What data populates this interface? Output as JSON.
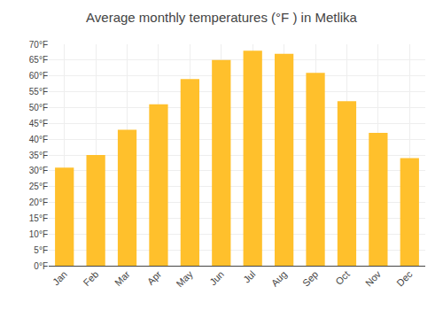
{
  "chart_data": {
    "type": "bar",
    "title": "Average monthly temperatures (°F ) in Metlika",
    "categories": [
      "Jan",
      "Feb",
      "Mar",
      "Apr",
      "May",
      "Jun",
      "Jul",
      "Aug",
      "Sep",
      "Oct",
      "Nov",
      "Dec"
    ],
    "values": [
      31,
      35,
      43,
      51,
      59,
      65,
      68,
      67,
      61,
      52,
      42,
      34
    ],
    "color": "#FFC02C",
    "ylim": [
      0,
      70
    ],
    "yticks": [
      {
        "value": 0,
        "label": "0°F"
      },
      {
        "value": 5,
        "label": "5°F"
      },
      {
        "value": 10,
        "label": "10°F"
      },
      {
        "value": 15,
        "label": "15°F"
      },
      {
        "value": 20,
        "label": "20°F"
      },
      {
        "value": 25,
        "label": "25°F"
      },
      {
        "value": 30,
        "label": "30°F"
      },
      {
        "value": 35,
        "label": "35°F"
      },
      {
        "value": 40,
        "label": "40°F"
      },
      {
        "value": 45,
        "label": "45°F"
      },
      {
        "value": 50,
        "label": "50°F"
      },
      {
        "value": 55,
        "label": "55°F"
      },
      {
        "value": 60,
        "label": "60°F"
      },
      {
        "value": 65,
        "label": "65°F"
      },
      {
        "value": 70,
        "label": "70°F"
      }
    ],
    "grid": true
  }
}
